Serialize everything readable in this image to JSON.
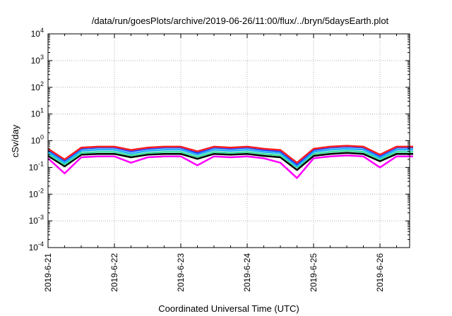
{
  "chart_data": {
    "type": "line",
    "title": "/data/run/goesPlots/archive/2019-06-26/11:00/flux/../bryn/5daysEarth.plot",
    "xlabel": "Coordinated Universal Time (UTC)",
    "ylabel": "cSv/day",
    "yscale": "log",
    "ylim": [
      0.0001,
      10000
    ],
    "xlim": [
      "2019-6-21",
      "2019-6-26 12:00"
    ],
    "grid": true,
    "x_ticks": [
      "2019-6-21",
      "2019-6-22",
      "2019-6-23",
      "2019-6-24",
      "2019-6-25",
      "2019-6-26"
    ],
    "y_ticks": [
      {
        "base": "10",
        "exp": "-4"
      },
      {
        "base": "10",
        "exp": "-3"
      },
      {
        "base": "10",
        "exp": "-2"
      },
      {
        "base": "10",
        "exp": "-1"
      },
      {
        "base": "10",
        "exp": "0"
      },
      {
        "base": "10",
        "exp": "1"
      },
      {
        "base": "10",
        "exp": "2"
      },
      {
        "base": "10",
        "exp": "3"
      },
      {
        "base": "10",
        "exp": "4"
      }
    ],
    "series": [
      {
        "color": "#ff2020",
        "values": [
          0.5,
          0.2,
          0.55,
          0.6,
          0.6,
          0.45,
          0.55,
          0.6,
          0.6,
          0.4,
          0.6,
          0.55,
          0.6,
          0.5,
          0.45,
          0.15,
          0.5,
          0.6,
          0.65,
          0.6,
          0.3,
          0.6,
          0.6
        ]
      },
      {
        "color": "#2040ff",
        "values": [
          0.45,
          0.18,
          0.5,
          0.55,
          0.55,
          0.4,
          0.5,
          0.55,
          0.55,
          0.35,
          0.55,
          0.5,
          0.55,
          0.45,
          0.4,
          0.13,
          0.45,
          0.55,
          0.6,
          0.55,
          0.27,
          0.55,
          0.55
        ]
      },
      {
        "color": "#20b0ff",
        "values": [
          0.38,
          0.15,
          0.42,
          0.46,
          0.46,
          0.33,
          0.42,
          0.46,
          0.46,
          0.3,
          0.46,
          0.42,
          0.46,
          0.38,
          0.34,
          0.11,
          0.38,
          0.46,
          0.5,
          0.46,
          0.23,
          0.46,
          0.46
        ]
      },
      {
        "color": "#40e0a0",
        "values": [
          0.32,
          0.13,
          0.35,
          0.38,
          0.38,
          0.28,
          0.35,
          0.38,
          0.38,
          0.25,
          0.38,
          0.35,
          0.38,
          0.32,
          0.28,
          0.1,
          0.32,
          0.38,
          0.42,
          0.38,
          0.2,
          0.38,
          0.38
        ]
      },
      {
        "color": "#000000",
        "values": [
          0.27,
          0.11,
          0.3,
          0.32,
          0.32,
          0.24,
          0.3,
          0.32,
          0.32,
          0.21,
          0.32,
          0.3,
          0.32,
          0.27,
          0.24,
          0.08,
          0.27,
          0.32,
          0.35,
          0.32,
          0.17,
          0.32,
          0.32
        ]
      },
      {
        "color": "#ff00ff",
        "values": [
          0.22,
          0.06,
          0.24,
          0.26,
          0.26,
          0.15,
          0.24,
          0.26,
          0.26,
          0.12,
          0.26,
          0.24,
          0.26,
          0.22,
          0.15,
          0.04,
          0.22,
          0.26,
          0.28,
          0.26,
          0.1,
          0.26,
          0.26
        ]
      }
    ]
  }
}
